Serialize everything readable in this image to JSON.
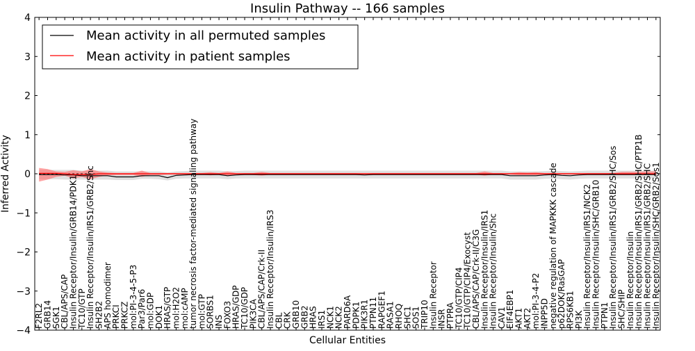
{
  "chart_data": {
    "type": "line",
    "title": "Insulin Pathway -- 166 samples",
    "xlabel": "Cellular Entities",
    "ylabel": "Inferred Activity",
    "ylim": [
      -4,
      4
    ],
    "yticks": [
      -4,
      -3,
      -2,
      -1,
      0,
      1,
      2,
      3,
      4
    ],
    "ytick_labels": [
      "−4",
      "−3",
      "−2",
      "−1",
      "0",
      "1",
      "2",
      "3",
      "4"
    ],
    "legend_position": "top-left",
    "categories": [
      "F2RL2",
      "GRB14",
      "SGK1",
      "CBL/APS/CAP",
      "Insulin Receptor/Insulin/GRB14/PDK1",
      "TC10/GTP",
      "Insulin Receptor/Insulin/IRS1/GRB2/Shc",
      "SH2B2",
      "APS homodimer",
      "PRKCI",
      "PRKCZ",
      "mol:PI-3-4-5-P3",
      "Par3/Par6",
      "mol:GDP",
      "DOK1",
      "HRAS/GTP",
      "mol:H2O2",
      "mol:cAMP",
      "tumor necrosis factor-mediated signaling pathway",
      "mol:GTP",
      "SORBS1",
      "INS",
      "FOXO3",
      "HRAS/GDP",
      "TC10/GDP",
      "PIK3CA",
      "CBL/APS/CAP/Crk-II",
      "Insulin Receptor/Insulin/IRS3",
      "CBL",
      "CRK",
      "GRB10",
      "GRB2",
      "HRAS",
      "IRS1",
      "NCK1",
      "NCK2",
      "PARD6A",
      "PDPK1",
      "PIK3R1",
      "PTPN11",
      "RAPGEF1",
      "RASA1",
      "RHOQ",
      "SHC1",
      "SOS1",
      "TRIP10",
      "Insulin Receptor",
      "INSR",
      "PTPRA",
      "TC10/GTP/CIP4",
      "TC10/GTP/CIP4/Exocyst",
      "CBL/APS/CAP/Crk-II/C3G",
      "Insulin Receptor/Insulin/IRS1",
      "Insulin Receptor/Insulin/Shc",
      "CAV1",
      "EIF4EBP1",
      "AKT1",
      "AKT2",
      "mol:PI-3-4-P2",
      "INPP5D",
      "negative regulation of MAPKKK cascade",
      "p62DOK/RasGAP",
      "RPS6KB1",
      "PI3K",
      "Insulin Receptor/Insulin/IRS1/NCK2",
      "Insulin Receptor/Insulin/SHC/GRB10",
      "PTPN1",
      "Insulin Receptor/Insulin/IRS1/GRB2/SHC/Sos",
      "SHC/SHIP",
      "Insulin Receptor/Insulin",
      "Insulin Receptor/Insulin/IRS1/GRB2/SHC/PTP1B",
      "Insulin Receptor/Insulin/IRS1/GRB2/SHC",
      "Insulin Receptor/Insulin/SHC/GRB2/Sos1"
    ],
    "series": [
      {
        "name": "Mean activity in all permuted samples",
        "color": "#000000",
        "values": [
          -0.02,
          -0.02,
          -0.02,
          -0.03,
          -0.03,
          -0.05,
          -0.05,
          -0.05,
          -0.05,
          -0.08,
          -0.08,
          -0.08,
          -0.05,
          -0.05,
          -0.05,
          -0.1,
          -0.04,
          -0.03,
          -0.02,
          -0.02,
          -0.02,
          -0.02,
          -0.05,
          -0.03,
          -0.02,
          -0.02,
          -0.02,
          -0.02,
          -0.02,
          -0.02,
          -0.02,
          -0.02,
          -0.02,
          -0.02,
          -0.02,
          -0.02,
          -0.02,
          -0.02,
          -0.03,
          -0.02,
          -0.02,
          -0.02,
          -0.02,
          -0.02,
          -0.02,
          -0.02,
          -0.02,
          -0.02,
          -0.02,
          -0.02,
          -0.02,
          -0.02,
          -0.02,
          -0.02,
          -0.02,
          -0.05,
          -0.05,
          -0.05,
          -0.05,
          -0.03,
          -0.02,
          -0.04,
          -0.05,
          -0.03,
          -0.02,
          -0.02,
          -0.02,
          -0.02,
          -0.02,
          -0.02,
          -0.02,
          -0.02,
          -0.02
        ],
        "band_low": [
          -0.14,
          -0.14,
          -0.14,
          -0.15,
          -0.15,
          -0.15,
          -0.15,
          -0.15,
          -0.15,
          -0.16,
          -0.16,
          -0.16,
          -0.13,
          -0.13,
          -0.14,
          -0.17,
          -0.13,
          -0.12,
          -0.12,
          -0.12,
          -0.12,
          -0.12,
          -0.14,
          -0.12,
          -0.12,
          -0.12,
          -0.12,
          -0.12,
          -0.12,
          -0.12,
          -0.12,
          -0.12,
          -0.12,
          -0.12,
          -0.12,
          -0.12,
          -0.12,
          -0.12,
          -0.12,
          -0.12,
          -0.12,
          -0.12,
          -0.12,
          -0.12,
          -0.12,
          -0.12,
          -0.12,
          -0.12,
          -0.12,
          -0.12,
          -0.12,
          -0.12,
          -0.12,
          -0.12,
          -0.12,
          -0.15,
          -0.15,
          -0.15,
          -0.15,
          -0.13,
          -0.12,
          -0.14,
          -0.15,
          -0.13,
          -0.12,
          -0.12,
          -0.12,
          -0.12,
          -0.12,
          -0.12,
          -0.12,
          -0.12,
          -0.12
        ],
        "band_high": [
          0.1,
          0.1,
          0.1,
          0.1,
          0.1,
          0.08,
          0.08,
          0.08,
          0.08,
          0.06,
          0.06,
          0.06,
          0.06,
          0.06,
          0.06,
          0.03,
          0.06,
          0.07,
          0.08,
          0.08,
          0.08,
          0.08,
          0.06,
          0.07,
          0.08,
          0.08,
          0.08,
          0.08,
          0.08,
          0.08,
          0.08,
          0.08,
          0.08,
          0.08,
          0.08,
          0.08,
          0.08,
          0.08,
          0.08,
          0.08,
          0.08,
          0.08,
          0.08,
          0.08,
          0.08,
          0.08,
          0.08,
          0.08,
          0.08,
          0.08,
          0.08,
          0.08,
          0.08,
          0.08,
          0.08,
          0.06,
          0.06,
          0.06,
          0.06,
          0.07,
          0.08,
          0.07,
          0.06,
          0.07,
          0.08,
          0.08,
          0.08,
          0.08,
          0.08,
          0.08,
          0.08,
          0.08,
          0.08
        ]
      },
      {
        "name": "Mean activity in patient samples",
        "color": "#ff0000",
        "values": [
          0.01,
          0.01,
          0.01,
          0.0,
          -0.02,
          -0.02,
          -0.02,
          0.0,
          0.0,
          0.0,
          0.0,
          0.0,
          0.0,
          0.0,
          0.0,
          0.0,
          0.0,
          0.0,
          0.0,
          0.0,
          0.0,
          0.0,
          0.0,
          0.0,
          0.0,
          0.0,
          0.0,
          0.0,
          0.0,
          0.0,
          0.0,
          0.0,
          0.0,
          0.0,
          0.0,
          0.0,
          0.0,
          0.0,
          0.0,
          0.0,
          0.0,
          0.0,
          0.0,
          0.0,
          0.0,
          0.0,
          0.0,
          0.0,
          0.0,
          0.0,
          0.0,
          0.0,
          0.0,
          0.0,
          0.0,
          0.0,
          0.0,
          0.0,
          0.0,
          0.0,
          0.0,
          0.0,
          0.0,
          0.0,
          0.0,
          0.0,
          0.0,
          0.0,
          0.0,
          0.0,
          0.0,
          0.0,
          0.0
        ],
        "band_low": [
          -0.2,
          -0.15,
          -0.08,
          -0.05,
          -0.12,
          -0.08,
          -0.14,
          -0.08,
          -0.04,
          -0.03,
          -0.03,
          -0.03,
          -0.08,
          -0.03,
          -0.03,
          -0.02,
          -0.02,
          -0.02,
          -0.02,
          -0.02,
          -0.04,
          -0.02,
          -0.06,
          -0.02,
          -0.02,
          -0.03,
          -0.05,
          -0.02,
          -0.02,
          -0.02,
          -0.02,
          -0.02,
          -0.02,
          -0.02,
          -0.02,
          -0.02,
          -0.02,
          -0.02,
          -0.02,
          -0.02,
          -0.02,
          -0.02,
          -0.02,
          -0.02,
          -0.02,
          -0.02,
          -0.02,
          -0.02,
          -0.02,
          -0.02,
          -0.02,
          -0.02,
          -0.05,
          -0.02,
          -0.02,
          -0.02,
          -0.03,
          -0.03,
          -0.03,
          -0.02,
          -0.02,
          -0.02,
          -0.02,
          -0.02,
          -0.02,
          -0.02,
          -0.02,
          -0.02,
          -0.02,
          -0.02,
          -0.02,
          -0.02,
          -0.02
        ],
        "band_high": [
          0.15,
          0.12,
          0.06,
          0.05,
          0.09,
          0.06,
          0.12,
          0.06,
          0.03,
          0.02,
          0.02,
          0.02,
          0.08,
          0.02,
          0.02,
          0.02,
          0.02,
          0.02,
          0.02,
          0.02,
          0.04,
          0.02,
          0.06,
          0.02,
          0.02,
          0.02,
          0.05,
          0.02,
          0.02,
          0.02,
          0.02,
          0.02,
          0.02,
          0.02,
          0.02,
          0.02,
          0.02,
          0.02,
          0.02,
          0.02,
          0.02,
          0.02,
          0.02,
          0.02,
          0.02,
          0.02,
          0.02,
          0.02,
          0.02,
          0.02,
          0.02,
          0.02,
          0.06,
          0.02,
          0.02,
          0.02,
          0.04,
          0.03,
          0.04,
          0.02,
          0.02,
          0.02,
          0.02,
          0.02,
          0.02,
          0.02,
          0.02,
          0.02,
          0.05,
          0.05,
          0.05,
          0.06,
          0.06
        ]
      }
    ],
    "band_colors": {
      "permuted": "#cccccc",
      "patient": "#ff6666"
    }
  }
}
